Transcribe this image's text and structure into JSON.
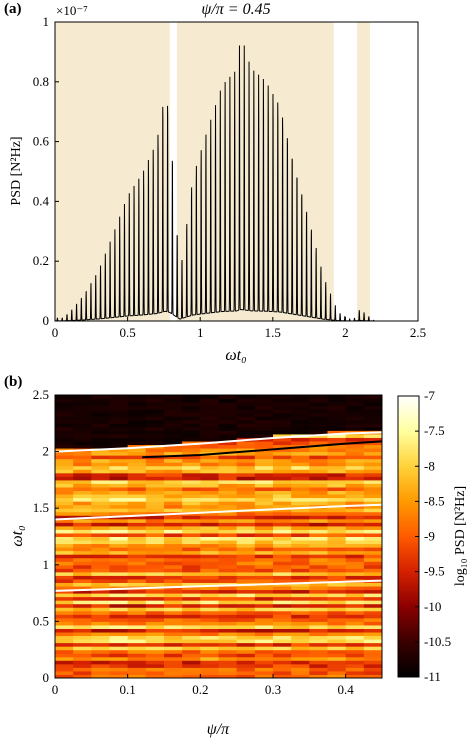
{
  "chart_data": [
    {
      "panel_label": "(a)",
      "type": "line",
      "title": "ψ/π = 0.45",
      "ylabel": "PSD [N²Hz]",
      "xlabel": "ωt₀",
      "y_multiplier_label": "×10⁻⁷",
      "xlim": [
        0,
        2.5
      ],
      "ylim": [
        0,
        1
      ],
      "xticks": [
        "0",
        "0.5",
        "1",
        "1.5",
        "2",
        "2.5"
      ],
      "yticks": [
        "0",
        "0.2",
        "0.4",
        "0.6",
        "0.8",
        "1"
      ],
      "shaded_bands": [
        [
          0.0,
          0.79
        ],
        [
          0.84,
          1.92
        ],
        [
          2.08,
          2.17
        ]
      ],
      "band_color": "#f6ead0",
      "line_color": "#000000",
      "peak_spacing": 0.033,
      "envelope": [
        {
          "x": 0.05,
          "y": 0.01
        },
        {
          "x": 0.1,
          "y": 0.03
        },
        {
          "x": 0.2,
          "y": 0.09
        },
        {
          "x": 0.3,
          "y": 0.17
        },
        {
          "x": 0.4,
          "y": 0.29
        },
        {
          "x": 0.5,
          "y": 0.42
        },
        {
          "x": 0.6,
          "y": 0.5
        },
        {
          "x": 0.7,
          "y": 0.62
        },
        {
          "x": 0.76,
          "y": 0.81
        },
        {
          "x": 0.79,
          "y": 0.72
        },
        {
          "x": 0.86,
          "y": 0.16
        },
        {
          "x": 0.95,
          "y": 0.5
        },
        {
          "x": 1.05,
          "y": 0.65
        },
        {
          "x": 1.15,
          "y": 0.79
        },
        {
          "x": 1.25,
          "y": 0.84
        },
        {
          "x": 1.28,
          "y": 0.96
        },
        {
          "x": 1.35,
          "y": 0.85
        },
        {
          "x": 1.45,
          "y": 0.82
        },
        {
          "x": 1.55,
          "y": 0.75
        },
        {
          "x": 1.65,
          "y": 0.55
        },
        {
          "x": 1.75,
          "y": 0.35
        },
        {
          "x": 1.85,
          "y": 0.15
        },
        {
          "x": 1.95,
          "y": 0.03
        },
        {
          "x": 2.05,
          "y": 0.0
        },
        {
          "x": 2.1,
          "y": 0.04
        },
        {
          "x": 2.15,
          "y": 0.02
        },
        {
          "x": 2.2,
          "y": 0.0
        }
      ]
    },
    {
      "panel_label": "(b)",
      "type": "heatmap",
      "xlabel": "ψ/π",
      "ylabel": "ωt₀",
      "xlim": [
        0,
        0.45
      ],
      "ylim": [
        0,
        2.5
      ],
      "xticks": [
        "0",
        "0.1",
        "0.2",
        "0.3",
        "0.4"
      ],
      "yticks": [
        "0",
        "0.5",
        "1",
        "1.5",
        "2",
        "2.5"
      ],
      "colorbar": {
        "label": "log₁₀ PSD [N²Hz]",
        "range": [
          -11,
          -7
        ],
        "ticks": [
          "-7",
          "-7.5",
          "-8",
          "-8.5",
          "-9",
          "-9.5",
          "-10",
          "-10.5",
          "-11"
        ],
        "colors": [
          "#000000",
          "#3a0000",
          "#8b0000",
          "#d42000",
          "#ff5a00",
          "#ff9a00",
          "#ffd23a",
          "#ffffa0",
          "#ffffff"
        ]
      },
      "n_columns": 18,
      "n_rows": 80,
      "white_curves": [
        {
          "x": [
            0,
            0.1,
            0.2,
            0.3,
            0.4,
            0.45
          ],
          "y": [
            2.0,
            2.03,
            2.07,
            2.12,
            2.16,
            2.17
          ]
        },
        {
          "x": [
            0,
            0.1,
            0.2,
            0.3,
            0.4,
            0.45
          ],
          "y": [
            1.4,
            1.43,
            1.46,
            1.49,
            1.52,
            1.53
          ]
        },
        {
          "x": [
            0,
            0.1,
            0.2,
            0.3,
            0.4,
            0.45
          ],
          "y": [
            0.77,
            0.79,
            0.81,
            0.83,
            0.85,
            0.86
          ]
        }
      ],
      "black_curve": {
        "x": [
          0.12,
          0.2,
          0.3,
          0.4,
          0.45
        ],
        "y": [
          1.95,
          1.97,
          2.02,
          2.07,
          2.09
        ]
      }
    }
  ]
}
